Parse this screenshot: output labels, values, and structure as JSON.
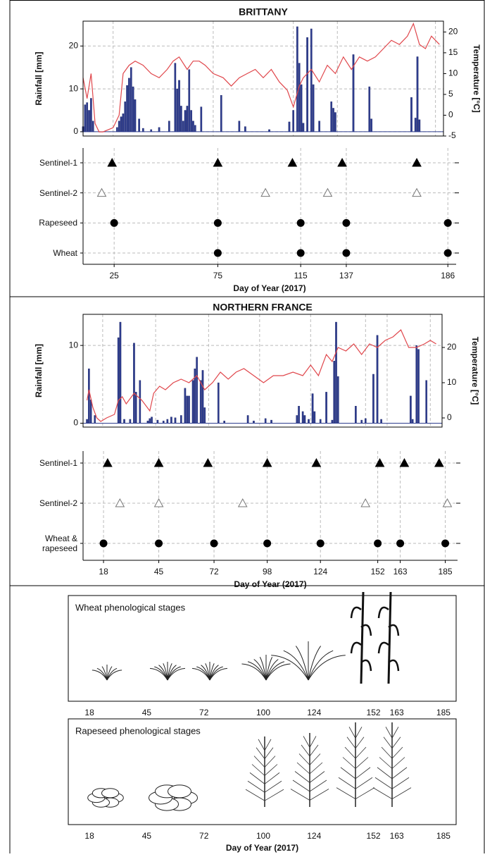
{
  "chart_data": [
    {
      "type": "bar-line",
      "title": "BRITTANY",
      "y_label": "Rainfall [mm]",
      "y2_label": "Temperature [°C]",
      "xlim": [
        10,
        190
      ],
      "xticks": [
        25,
        75,
        115,
        137,
        186
      ],
      "xtick_labels": false,
      "ylim": [
        -1,
        25.8
      ],
      "yticks": [
        0,
        10,
        20
      ],
      "y2lim": [
        -5,
        22.6
      ],
      "y2ticks": [
        -5,
        0,
        5,
        10,
        15,
        20
      ],
      "grid": true,
      "series": [
        {
          "type": "bar",
          "color": "#2e3d8f",
          "x": [
            10,
            11,
            12,
            13,
            14,
            15,
            27,
            28,
            29,
            30,
            31,
            32,
            33,
            34,
            35,
            36,
            38,
            40,
            44,
            48,
            53,
            56,
            57,
            58,
            59,
            60,
            61,
            62,
            63,
            64,
            65,
            66,
            69,
            79,
            88,
            91,
            103,
            113,
            115,
            117,
            118,
            119,
            120,
            122,
            124,
            125,
            128,
            134,
            135,
            136,
            145,
            153,
            154,
            174,
            176,
            177,
            178
          ],
          "values": [
            1.2,
            6.3,
            6.8,
            5,
            7.8,
            2.5,
            1,
            2.5,
            3.5,
            4.2,
            7,
            10.8,
            12.5,
            15,
            10.5,
            7.5,
            3,
            0.8,
            0.5,
            1,
            2.5,
            16,
            10,
            12,
            6,
            2.5,
            5,
            6,
            14.5,
            5,
            2.5,
            1.5,
            5.8,
            8.5,
            2.5,
            1.2,
            0.5,
            2.3,
            5,
            24.5,
            16,
            11,
            2,
            22,
            24,
            11,
            2.5,
            7,
            5.5,
            4.5,
            18,
            10.5,
            3,
            8,
            3.2,
            17.5,
            2.8
          ]
        },
        {
          "type": "line",
          "axis": "y2",
          "color": "#e0474c",
          "x": [
            10,
            12,
            14,
            16,
            18,
            20,
            25,
            28,
            30,
            33,
            36,
            40,
            44,
            48,
            52,
            55,
            58,
            62,
            65,
            68,
            71,
            75,
            80,
            84,
            88,
            92,
            96,
            100,
            104,
            108,
            112,
            115,
            118,
            120,
            124,
            128,
            132,
            136,
            140,
            144,
            148,
            152,
            156,
            160,
            164,
            168,
            172,
            175,
            178,
            181,
            184,
            186,
            188
          ],
          "values": [
            9,
            4,
            10,
            -2,
            -4,
            -4,
            -3,
            0,
            10,
            12,
            13,
            12,
            10,
            9,
            11,
            13,
            14,
            11,
            13,
            13,
            12,
            10,
            9,
            7,
            9,
            10,
            11,
            9,
            11,
            8,
            6,
            2,
            7,
            9,
            11,
            8,
            12,
            10,
            14,
            11,
            14,
            13,
            14,
            16,
            18,
            17,
            19,
            22,
            17,
            16,
            19,
            18,
            17
          ]
        }
      ]
    },
    {
      "type": "dot-plot",
      "x_label": "Day of Year (2017)",
      "xlim": [
        10,
        190
      ],
      "xticks": [
        25,
        75,
        115,
        137,
        186
      ],
      "grid": true,
      "series": [
        {
          "name": "Sentinel-1",
          "marker": "triangle",
          "filled": true,
          "color": "#000000",
          "values": [
            24,
            75,
            111,
            135,
            171
          ]
        },
        {
          "name": "Sentinel-2",
          "marker": "triangle",
          "filled": false,
          "color": "#777777",
          "values": [
            19,
            98,
            128,
            171
          ]
        },
        {
          "name": "Rapeseed",
          "marker": "circle",
          "filled": true,
          "color": "#000000",
          "values": [
            25,
            75,
            115,
            137,
            186
          ]
        },
        {
          "name": "Wheat",
          "marker": "circle",
          "filled": true,
          "color": "#000000",
          "values": [
            75,
            115,
            137,
            186
          ]
        }
      ]
    },
    {
      "type": "bar-line",
      "title": "NORTHERN FRANCE",
      "y_label": "Rainfall [mm]",
      "y2_label": "Temperature [°C]",
      "xlim": [
        8,
        191
      ],
      "xticks": [
        18,
        45,
        72,
        98,
        124,
        152,
        163,
        185
      ],
      "xtick_labels": false,
      "ylim": [
        -0.5,
        14
      ],
      "yticks": [
        0,
        10
      ],
      "y2lim": [
        -2.6,
        29.4
      ],
      "y2ticks": [
        0,
        10,
        20
      ],
      "grid": true,
      "series": [
        {
          "type": "bar",
          "color": "#2e3d8f",
          "x": [
            10,
            11,
            12,
            14,
            26,
            27,
            29,
            32,
            34,
            35,
            37,
            41,
            42,
            43,
            46,
            49,
            51,
            53,
            55,
            58,
            60,
            61,
            62,
            64,
            65,
            66,
            68,
            69,
            70,
            77,
            80,
            92,
            95,
            101,
            104,
            117,
            118,
            120,
            121,
            123,
            125,
            126,
            129,
            132,
            135,
            136,
            137,
            138,
            147,
            150,
            152,
            156,
            158,
            160,
            175,
            176,
            178,
            179,
            183
          ],
          "values": [
            0.5,
            7,
            3,
            1,
            11,
            13,
            0.5,
            0.5,
            10.3,
            4,
            5.5,
            0.3,
            0.6,
            0.8,
            0.4,
            0.3,
            0.5,
            0.8,
            0.7,
            1,
            4.5,
            3.5,
            3.5,
            5.5,
            7,
            8.5,
            5.5,
            6.8,
            2,
            5.2,
            0.3,
            1,
            0.3,
            0.6,
            0.4,
            1,
            2.2,
            1.5,
            1,
            0.5,
            3.8,
            1.5,
            0.5,
            4,
            0.4,
            8,
            13,
            6,
            2.2,
            0.4,
            0.6,
            6.3,
            11.3,
            0.5,
            3.5,
            0.5,
            10,
            9.5,
            5.5
          ]
        },
        {
          "type": "line",
          "axis": "y2",
          "color": "#e0474c",
          "x": [
            10,
            11,
            13,
            15,
            17,
            20,
            24,
            26,
            28,
            30,
            34,
            38,
            42,
            44,
            47,
            50,
            54,
            58,
            62,
            66,
            70,
            74,
            78,
            82,
            86,
            90,
            95,
            100,
            105,
            110,
            115,
            120,
            124,
            128,
            132,
            135,
            138,
            142,
            146,
            150,
            154,
            158,
            162,
            166,
            170,
            174,
            178,
            182,
            185,
            188
          ],
          "values": [
            5,
            8,
            3,
            0,
            -1,
            0,
            1,
            5,
            6,
            4,
            7,
            5,
            2,
            7,
            9,
            8,
            10,
            11,
            10,
            12,
            8,
            10,
            13,
            11,
            13,
            14,
            12,
            10,
            12,
            12,
            13,
            12,
            15,
            12,
            18,
            16,
            20,
            19,
            21,
            18,
            21,
            20,
            22,
            23,
            25,
            20,
            20,
            21,
            22,
            21
          ]
        }
      ]
    },
    {
      "type": "dot-plot",
      "x_label": "Day of Year (2017)",
      "xlim": [
        8,
        191
      ],
      "xticks": [
        18,
        45,
        72,
        98,
        124,
        152,
        163,
        185
      ],
      "grid": true,
      "series": [
        {
          "name": "Sentinel-1",
          "marker": "triangle",
          "filled": true,
          "color": "#000000",
          "values": [
            20,
            45,
            69,
            98,
            122,
            153,
            165,
            182
          ]
        },
        {
          "name": "Sentinel-2",
          "marker": "triangle",
          "filled": false,
          "color": "#777777",
          "values": [
            26,
            45,
            86,
            146,
            186
          ]
        },
        {
          "name": "Wheat &\nrapeseed",
          "marker": "circle",
          "filled": true,
          "color": "#000000",
          "values": [
            18,
            45,
            72,
            98,
            124,
            152,
            163,
            185
          ]
        }
      ]
    },
    {
      "type": "phenology",
      "crop": "wheat",
      "title": "Wheat phenological stages",
      "xlim": [
        8,
        191
      ],
      "xticks": [
        18,
        45,
        72,
        100,
        124,
        152,
        163,
        185
      ]
    },
    {
      "type": "phenology",
      "crop": "rapeseed",
      "title": "Rapeseed phenological stages",
      "x_label": "Day of Year (2017)",
      "xlim": [
        8,
        191
      ],
      "xticks": [
        18,
        45,
        72,
        100,
        124,
        152,
        163,
        185
      ]
    }
  ]
}
